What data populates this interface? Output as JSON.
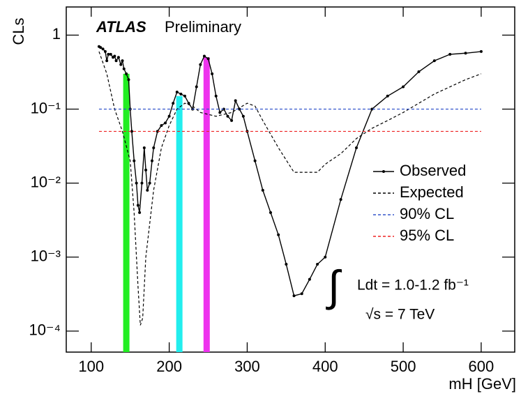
{
  "chart_data": {
    "type": "line",
    "xlabel": "mH [GeV]",
    "ylabel": "CLs",
    "log_y": true,
    "xlim": [
      68,
      643
    ],
    "ylim": [
      5.2e-05,
      2.4
    ],
    "xticks": [
      100,
      200,
      300,
      400,
      500,
      600
    ],
    "yticks": [
      {
        "value": 1,
        "label": "1"
      },
      {
        "value": 0.1,
        "label": "10⁻¹"
      },
      {
        "value": 0.01,
        "label": "10⁻²"
      },
      {
        "value": 0.001,
        "label": "10⁻³"
      },
      {
        "value": 0.0001,
        "label": "10⁻⁴"
      }
    ],
    "legend": "right",
    "annotations": [
      "ATLAS",
      "Preliminary",
      "∫",
      "Ldt = 1.0-1.2 fb⁻¹",
      "√s = 7 TeV"
    ],
    "series": [
      {
        "name": "Observed",
        "color": "#000000",
        "dash": false,
        "markers": true,
        "x": [
          110,
          112,
          115,
          118,
          120,
          122,
          125,
          128,
          130,
          132,
          135,
          138,
          140,
          142,
          145,
          148,
          150,
          152,
          155,
          158,
          160,
          162,
          165,
          168,
          170,
          172,
          175,
          178,
          180,
          185,
          190,
          195,
          200,
          205,
          210,
          215,
          220,
          225,
          230,
          235,
          240,
          245,
          250,
          255,
          260,
          265,
          270,
          275,
          280,
          285,
          290,
          295,
          300,
          310,
          320,
          330,
          340,
          350,
          360,
          370,
          380,
          390,
          400,
          420,
          440,
          460,
          480,
          500,
          520,
          540,
          560,
          580,
          600
        ],
        "values": [
          0.7,
          0.68,
          0.65,
          0.6,
          0.45,
          0.55,
          0.55,
          0.5,
          0.52,
          0.45,
          0.5,
          0.4,
          0.45,
          0.35,
          0.3,
          0.25,
          0.1,
          0.05,
          0.02,
          0.01,
          0.005,
          0.004,
          0.01,
          0.03,
          0.015,
          0.008,
          0.01,
          0.02,
          0.03,
          0.05,
          0.06,
          0.065,
          0.08,
          0.12,
          0.17,
          0.16,
          0.15,
          0.12,
          0.1,
          0.2,
          0.4,
          0.52,
          0.48,
          0.3,
          0.15,
          0.09,
          0.1,
          0.08,
          0.07,
          0.13,
          0.1,
          0.08,
          0.05,
          0.02,
          0.008,
          0.004,
          0.002,
          0.0008,
          0.0003,
          0.00032,
          0.0005,
          0.0008,
          0.001,
          0.006,
          0.03,
          0.1,
          0.15,
          0.2,
          0.32,
          0.45,
          0.55,
          0.57,
          0.6
        ]
      },
      {
        "name": "Expected",
        "color": "#000000",
        "dash": true,
        "markers": false,
        "x": [
          110,
          120,
          130,
          140,
          150,
          155,
          160,
          163,
          166,
          170,
          180,
          190,
          200,
          210,
          220,
          230,
          240,
          260,
          280,
          300,
          310,
          320,
          340,
          360,
          370,
          390,
          400,
          420,
          440,
          460,
          480,
          500,
          520,
          540,
          560,
          580,
          600
        ],
        "values": [
          0.6,
          0.3,
          0.1,
          0.05,
          0.02,
          0.004,
          0.0004,
          0.00012,
          0.00015,
          0.001,
          0.008,
          0.03,
          0.06,
          0.1,
          0.12,
          0.11,
          0.09,
          0.08,
          0.09,
          0.12,
          0.11,
          0.07,
          0.03,
          0.014,
          0.014,
          0.014,
          0.018,
          0.025,
          0.04,
          0.055,
          0.07,
          0.09,
          0.12,
          0.16,
          0.2,
          0.25,
          0.3
        ]
      },
      {
        "name": "90% CL",
        "color": "#3355cc",
        "dash": true,
        "markers": false,
        "x": [
          110,
          600
        ],
        "values": [
          0.1,
          0.1
        ]
      },
      {
        "name": "95% CL",
        "color": "#ee2222",
        "dash": true,
        "markers": false,
        "x": [
          110,
          600
        ],
        "values": [
          0.05,
          0.05
        ]
      }
    ],
    "highlights": [
      {
        "x": 145,
        "value": 0.3,
        "color": "#22ee22"
      },
      {
        "x": 213,
        "value": 0.15,
        "color": "#22eeee"
      },
      {
        "x": 248,
        "value": 0.5,
        "color": "#ee33ee"
      }
    ]
  }
}
